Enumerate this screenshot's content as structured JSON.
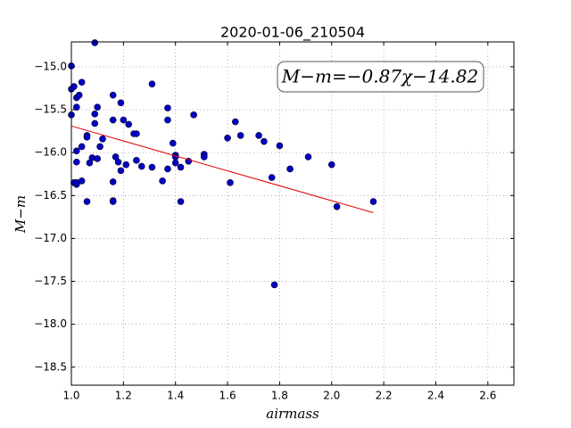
{
  "chart_data": {
    "type": "scatter",
    "title": "2020-01-06_210504",
    "x_label": "airmass",
    "y_label": "M−m",
    "annotation": "M−m=−0.87χ−14.82",
    "xlim": [
      1.0,
      2.7
    ],
    "ylim": [
      -18.71,
      -14.71
    ],
    "grid": true,
    "xticks": [
      {
        "value": 1.0,
        "label": "1.0"
      },
      {
        "value": 1.2,
        "label": "1.2"
      },
      {
        "value": 1.4,
        "label": "1.4"
      },
      {
        "value": 1.6,
        "label": "1.6"
      },
      {
        "value": 1.8,
        "label": "1.8"
      },
      {
        "value": 2.0,
        "label": "2.0"
      },
      {
        "value": 2.2,
        "label": "2.2"
      },
      {
        "value": 2.4,
        "label": "2.4"
      },
      {
        "value": 2.6,
        "label": "2.6"
      }
    ],
    "yticks": [
      {
        "value": -15.0,
        "label": "−15.0"
      },
      {
        "value": -15.5,
        "label": "−15.5"
      },
      {
        "value": -16.0,
        "label": "−16.0"
      },
      {
        "value": -16.5,
        "label": "−16.5"
      },
      {
        "value": -17.0,
        "label": "−17.0"
      },
      {
        "value": -17.5,
        "label": "−17.5"
      },
      {
        "value": -18.0,
        "label": "−18.0"
      },
      {
        "value": -18.5,
        "label": "−18.5"
      }
    ],
    "series": [
      {
        "type": "scatter",
        "color": "#0000c0",
        "x": [
          1.0,
          1.0,
          1.01,
          1.0,
          1.09,
          1.04,
          1.02,
          1.03,
          1.02,
          1.02,
          1.02,
          1.01,
          1.02,
          1.02,
          1.04,
          1.04,
          1.06,
          1.06,
          1.07,
          1.06,
          1.08,
          1.09,
          1.09,
          1.1,
          1.1,
          1.11,
          1.12,
          1.16,
          1.16,
          1.16,
          1.16,
          1.16,
          1.17,
          1.18,
          1.19,
          1.19,
          1.2,
          1.21,
          1.22,
          1.24,
          1.25,
          1.25,
          1.27,
          1.31,
          1.31,
          1.35,
          1.37,
          1.37,
          1.37,
          1.39,
          1.4,
          1.4,
          1.4,
          1.42,
          1.42,
          1.45,
          1.47,
          1.51,
          1.51,
          1.6,
          1.61,
          1.63,
          1.65,
          1.72,
          1.74,
          1.77,
          1.78,
          1.8,
          1.84,
          1.91,
          2.0,
          2.02,
          2.16
        ],
        "values": [
          -14.99,
          -15.26,
          -15.23,
          -15.56,
          -14.72,
          -15.18,
          -15.36,
          -15.33,
          -15.47,
          -15.98,
          -16.11,
          -16.35,
          -16.37,
          -16.35,
          -16.33,
          -15.93,
          -15.8,
          -15.82,
          -16.12,
          -16.57,
          -16.06,
          -15.55,
          -15.66,
          -15.47,
          -16.07,
          -15.93,
          -15.84,
          -15.33,
          -15.62,
          -16.34,
          -16.56,
          -16.57,
          -16.05,
          -16.11,
          -16.21,
          -15.42,
          -15.62,
          -16.14,
          -15.67,
          -15.78,
          -15.78,
          -16.09,
          -16.16,
          -15.2,
          -16.17,
          -16.33,
          -15.48,
          -15.62,
          -16.19,
          -15.89,
          -16.03,
          -16.05,
          -16.12,
          -16.17,
          -16.57,
          -16.1,
          -15.56,
          -16.02,
          -16.05,
          -15.83,
          -16.35,
          -15.64,
          -15.8,
          -15.8,
          -15.87,
          -16.29,
          -17.54,
          -15.92,
          -16.19,
          -16.05,
          -16.14,
          -16.63,
          -16.57
        ]
      },
      {
        "type": "line",
        "color": "#e00000",
        "x": [
          1.0,
          2.16
        ],
        "values": [
          -15.69,
          -16.7
        ]
      }
    ]
  }
}
